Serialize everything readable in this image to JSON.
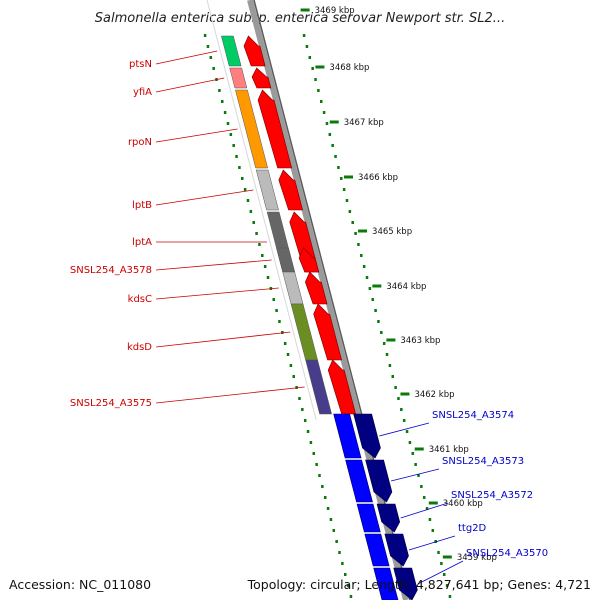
{
  "title": "Salmonella enterica subsp. enterica serovar Newport str. SL2...",
  "footer": {
    "accession_label": "Accession: NC_011080",
    "topology_label": "Topology: circular; Length: 4,827,641 bp; Genes: 4,721"
  },
  "colors": {
    "label_reverse": "#cc0000",
    "label_forward": "#0000cc",
    "arrow_reverse": "#ff0000",
    "arrow_forward": "#000080",
    "ruler_tick": "#0a7a0a",
    "backbone": "#8a8a8a"
  },
  "kbp_labels": [
    "3469 kbp",
    "3468 kbp",
    "3467 kbp",
    "3466 kbp",
    "3465 kbp",
    "3464 kbp",
    "3463 kbp",
    "3462 kbp",
    "3461 kbp",
    "3460 kbp",
    "3459 kbp"
  ],
  "reverse_genes": [
    {
      "label": "ptsN",
      "color": "#ff0000",
      "cog": "#00cc66"
    },
    {
      "label": "yfiA",
      "color": "#ff0000",
      "cog": "#ff7f7f"
    },
    {
      "label": "rpoN",
      "color": "#ff0000",
      "cog": "#ff9900"
    },
    {
      "label": "lptB",
      "color": "#ff0000",
      "cog": "#bbbbbb"
    },
    {
      "label": "lptA",
      "color": "#ff0000",
      "cog": "#666666"
    },
    {
      "label": "SNSL254_A3578",
      "color": "#ff0000",
      "cog": "#666666"
    },
    {
      "label": "kdsC",
      "color": "#ff0000",
      "cog": "#bbbbbb"
    },
    {
      "label": "kdsD",
      "color": "#ff0000",
      "cog": "#6b8e23"
    },
    {
      "label": "SNSL254_A3575",
      "color": "#ff0000",
      "cog": "#483d8b"
    }
  ],
  "forward_genes": [
    {
      "label": "SNSL254_A3574",
      "color": "#000080",
      "cog": "#0000ff"
    },
    {
      "label": "SNSL254_A3573",
      "color": "#000080",
      "cog": "#0000ff"
    },
    {
      "label": "SNSL254_A3572",
      "color": "#000080",
      "cog": "#0000ff"
    },
    {
      "label": "ttg2D",
      "color": "#000080",
      "cog": "#0000ff"
    },
    {
      "label": "SNSL254_A3570",
      "color": "#000080",
      "cog": "#0000ff"
    }
  ]
}
